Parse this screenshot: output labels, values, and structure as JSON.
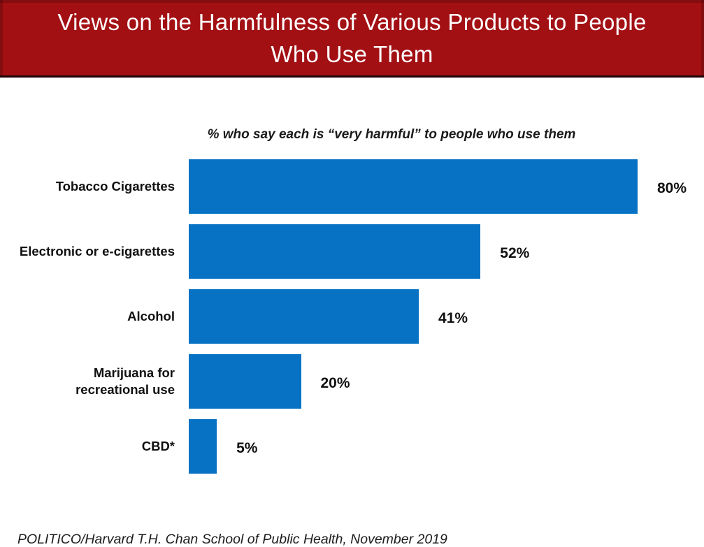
{
  "header": {
    "title_line1": "Views on the Harmfulness of Various Products to People",
    "title_line2": "Who Use Them",
    "background": "#A21014",
    "text_color": "#FFFFFF"
  },
  "chart_data": {
    "type": "bar",
    "orientation": "horizontal",
    "subtitle": "% who say each is “very harmful” to people who use them",
    "categories": [
      "Tobacco Cigarettes",
      "Electronic or e-cigarettes",
      "Alcohol",
      "Marijuana for\nrecreational use",
      "CBD*"
    ],
    "values": [
      80,
      52,
      41,
      20,
      5
    ],
    "value_labels": [
      "80%",
      "52%",
      "41%",
      "20%",
      "5%"
    ],
    "xlim": [
      0,
      100
    ],
    "grid": false,
    "legend": "none",
    "bar_color": "#0772C3",
    "value_label_position": "outside-end"
  },
  "footer": {
    "source": "POLITICO/Harvard T.H. Chan School of Public Health, November 2019"
  }
}
